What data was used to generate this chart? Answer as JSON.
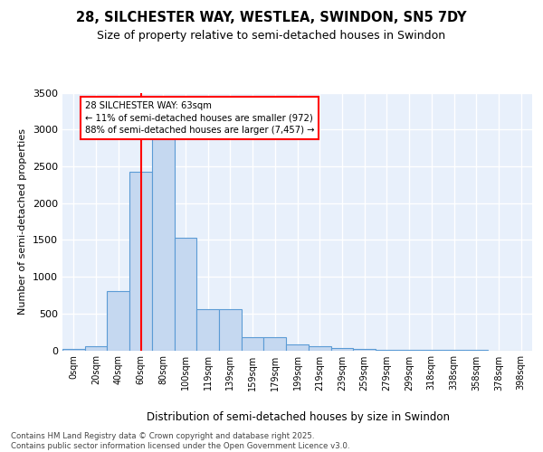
{
  "title_line1": "28, SILCHESTER WAY, WESTLEA, SWINDON, SN5 7DY",
  "title_line2": "Size of property relative to semi-detached houses in Swindon",
  "xlabel": "Distribution of semi-detached houses by size in Swindon",
  "ylabel": "Number of semi-detached properties",
  "bin_labels": [
    "0sqm",
    "20sqm",
    "40sqm",
    "60sqm",
    "80sqm",
    "100sqm",
    "119sqm",
    "139sqm",
    "159sqm",
    "179sqm",
    "199sqm",
    "219sqm",
    "239sqm",
    "259sqm",
    "279sqm",
    "299sqm",
    "318sqm",
    "338sqm",
    "358sqm",
    "378sqm",
    "398sqm"
  ],
  "bar_values": [
    20,
    55,
    800,
    2430,
    2880,
    1530,
    555,
    555,
    175,
    175,
    75,
    50,
    35,
    20,
    5,
    5,
    5,
    2,
    2,
    0,
    0
  ],
  "bar_color": "#c5d8f0",
  "bar_edge_color": "#5b9bd5",
  "red_line_x": 3,
  "annotation_text": "28 SILCHESTER WAY: 63sqm\n← 11% of semi-detached houses are smaller (972)\n88% of semi-detached houses are larger (7,457) →",
  "footer_text": "Contains HM Land Registry data © Crown copyright and database right 2025.\nContains public sector information licensed under the Open Government Licence v3.0.",
  "ylim": [
    0,
    3500
  ],
  "background_color": "#e8f0fb",
  "grid_color": "white",
  "fig_bg": "white"
}
